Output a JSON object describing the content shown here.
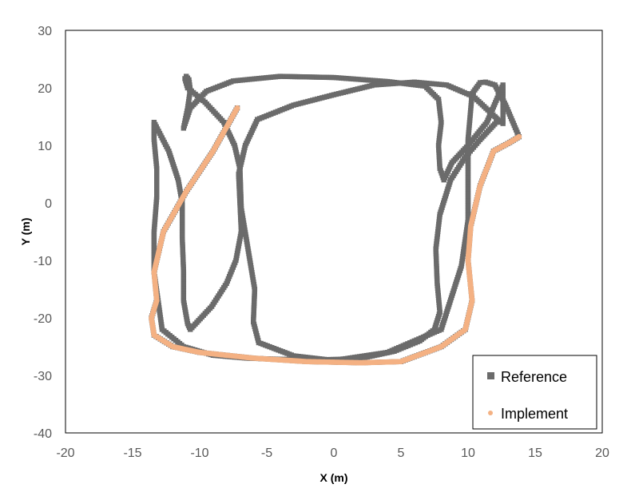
{
  "chart_data": {
    "type": "scatter",
    "xlabel": "X (m)",
    "ylabel": "Y (m)",
    "xlim": [
      -20,
      20
    ],
    "ylim": [
      -40,
      30
    ],
    "xticks": [
      -20,
      -15,
      -10,
      -5,
      0,
      5,
      10,
      15,
      20
    ],
    "yticks": [
      -40,
      -30,
      -20,
      -10,
      0,
      10,
      20,
      30
    ],
    "xtick_labels": [
      "-20",
      "-15",
      "-10",
      "-5",
      "0",
      "5",
      "10",
      "15",
      "20"
    ],
    "ytick_labels": [
      "-40",
      "-30",
      "-20",
      "-10",
      "0",
      "10",
      "20",
      "30"
    ],
    "grid": false,
    "legend_position": "bottom-right",
    "series": [
      {
        "name": "Reference",
        "color": "#6b6b6b",
        "marker": "square",
        "x": [
          -7.2,
          -9,
          -11,
          -12.7,
          -13.4,
          -13.2,
          -13.6,
          -13.4,
          -12,
          -10,
          -6,
          -2,
          2,
          5,
          8,
          9.8,
          10.3,
          10,
          10.2,
          10.9,
          11.9,
          13.1,
          13.8,
          12.8,
          12,
          11.3,
          10.9,
          10.3,
          10.0,
          10.0,
          10.0,
          9.5,
          8.0,
          4,
          0,
          -3,
          -5.6,
          -6,
          -5.9,
          -6.4,
          -6.9,
          -7,
          -7.4,
          -8.2,
          -9.6,
          -10.9,
          -11.1,
          -11.0,
          -10.8,
          -10.7,
          -10.9,
          -11.2,
          -10.7,
          -9.5,
          -7.5,
          -4,
          0,
          4,
          6.8,
          7.8,
          8.0,
          7.8,
          7.9,
          8.2,
          8.8,
          10,
          11.4,
          12.6,
          12.6,
          12.2,
          12,
          10.4,
          8.4,
          6,
          3,
          0,
          -3,
          -5.7,
          -6.6,
          -7.1,
          -7.0,
          -6.9,
          -7.3,
          -8.0,
          -9.1,
          -10.7,
          -10.9,
          -11.2,
          -11.2,
          -11.3,
          -11.3,
          -11.6,
          -12.3,
          -13.4,
          -13.4,
          -13.2,
          -13.2,
          -13.4,
          -13.4,
          -12.8,
          -11.2,
          -9.0,
          -6.5,
          -4.0,
          -1.5,
          0.5,
          2.5,
          4.5,
          6.4,
          7.5,
          7.9,
          7.7,
          7.6,
          7.9,
          8.7,
          9.8,
          10.9,
          12.1
        ],
        "y": [
          16.5,
          9,
          2,
          -5,
          -12,
          -17,
          -20,
          -23,
          -25,
          -26,
          -27,
          -27.6,
          -27.8,
          -27.6,
          -25,
          -22,
          -17,
          -10,
          -4,
          3,
          9,
          10.5,
          11.5,
          17,
          20.5,
          21,
          20.9,
          19,
          11,
          4,
          -3,
          -11,
          -22,
          -26,
          -27.4,
          -26.6,
          -24.3,
          -20.7,
          -15,
          -8,
          -1,
          6,
          10,
          14,
          17.5,
          20,
          21.6,
          22,
          21.4,
          19.6,
          16.4,
          13,
          16.5,
          19.4,
          21.2,
          22,
          21.8,
          21.1,
          20.3,
          18,
          14,
          10,
          6,
          4,
          7,
          10,
          14,
          20.5,
          13.8,
          14.5,
          15,
          18.5,
          20.5,
          21,
          20.5,
          18.8,
          17,
          14.5,
          10,
          5,
          0,
          -5,
          -10,
          -14,
          -18,
          -22,
          -21,
          -17,
          -12,
          -6,
          0,
          4,
          9,
          14,
          11,
          6,
          1,
          -5,
          -12,
          -22,
          -25,
          -26.5,
          -27,
          -27.2,
          -27.3,
          -27.2,
          -26.8,
          -25.8,
          -24,
          -22,
          -19,
          -14,
          -8,
          -2,
          4,
          8,
          11,
          14
        ]
      },
      {
        "name": "Implement",
        "color": "#f4b183",
        "marker": "circle",
        "x": [
          -7.2,
          -9,
          -11,
          -12.7,
          -13.4,
          -13.2,
          -13.6,
          -13.4,
          -12,
          -10,
          -6,
          -2,
          2,
          5,
          8,
          9.8,
          10.3,
          10,
          10.2,
          10.9,
          11.9,
          13.1,
          13.8
        ],
        "y": [
          16.5,
          9,
          2,
          -5,
          -12,
          -17,
          -20,
          -23,
          -25,
          -26,
          -27,
          -27.6,
          -27.8,
          -27.6,
          -25,
          -22,
          -17,
          -10,
          -4,
          3,
          9,
          10.5,
          11.5
        ]
      }
    ]
  }
}
